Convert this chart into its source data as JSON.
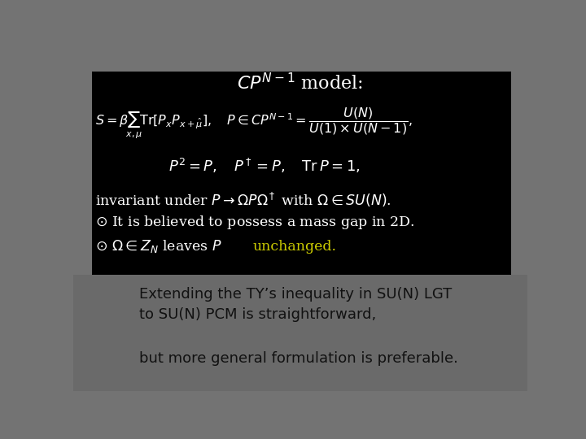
{
  "bg_outer_color": "#737373",
  "bg_inner_color": "#000000",
  "title_color": "#ffffff",
  "body_color": "#ffffff",
  "unchanged_color": "#cccc00",
  "bottom_text1": "Extending the TY’s inequality in SU(N) LGT\nto SU(N) PCM is straightforward,",
  "bottom_text2": "but more general formulation is preferable.",
  "bottom_color": "#111111",
  "bottom_bg": "#777777"
}
